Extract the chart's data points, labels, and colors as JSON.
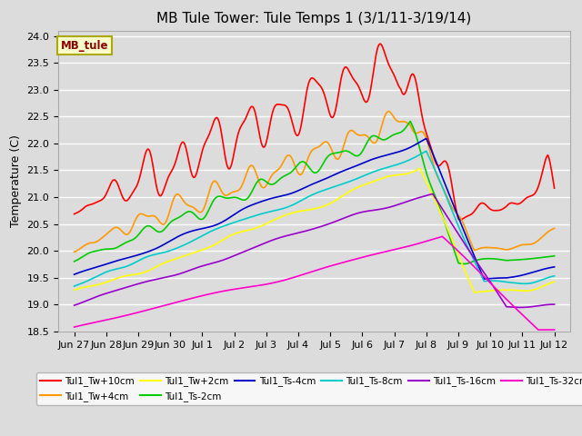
{
  "title": "MB Tule Tower: Tule Temps 1 (3/1/11-3/19/14)",
  "ylabel": "Temperature (C)",
  "xlabel": "",
  "ylim": [
    18.5,
    24.1
  ],
  "yticks": [
    18.5,
    19.0,
    19.5,
    20.0,
    20.5,
    21.0,
    21.5,
    22.0,
    22.5,
    23.0,
    23.5,
    24.0
  ],
  "xtick_labels": [
    "Jun 27",
    "Jun 28",
    "Jun 29",
    "Jun 30",
    "Jul 1",
    "Jul 2",
    "Jul 3",
    "Jul 4",
    "Jul 5",
    "Jul 6",
    "Jul 7",
    "Jul 8",
    "Jul 9",
    "Jul 10",
    "Jul 11",
    "Jul 12"
  ],
  "xtick_positions": [
    0,
    1,
    2,
    3,
    4,
    5,
    6,
    7,
    8,
    9,
    10,
    11,
    12,
    13,
    14,
    15
  ],
  "series_colors": {
    "Tul1_Tw+10cm": "#ff0000",
    "Tul1_Tw+4cm": "#ff9900",
    "Tul1_Tw+2cm": "#ffff00",
    "Tul1_Ts-2cm": "#00cc00",
    "Tul1_Ts-4cm": "#0000cc",
    "Tul1_Ts-8cm": "#00cccc",
    "Tul1_Ts-16cm": "#9900cc",
    "Tul1_Ts-32cm": "#ff00cc"
  },
  "background_color": "#dcdcdc",
  "plot_bg_color": "#dcdcdc",
  "grid_color": "#ffffff",
  "title_fontsize": 11,
  "label_fontsize": 9,
  "tick_fontsize": 8
}
